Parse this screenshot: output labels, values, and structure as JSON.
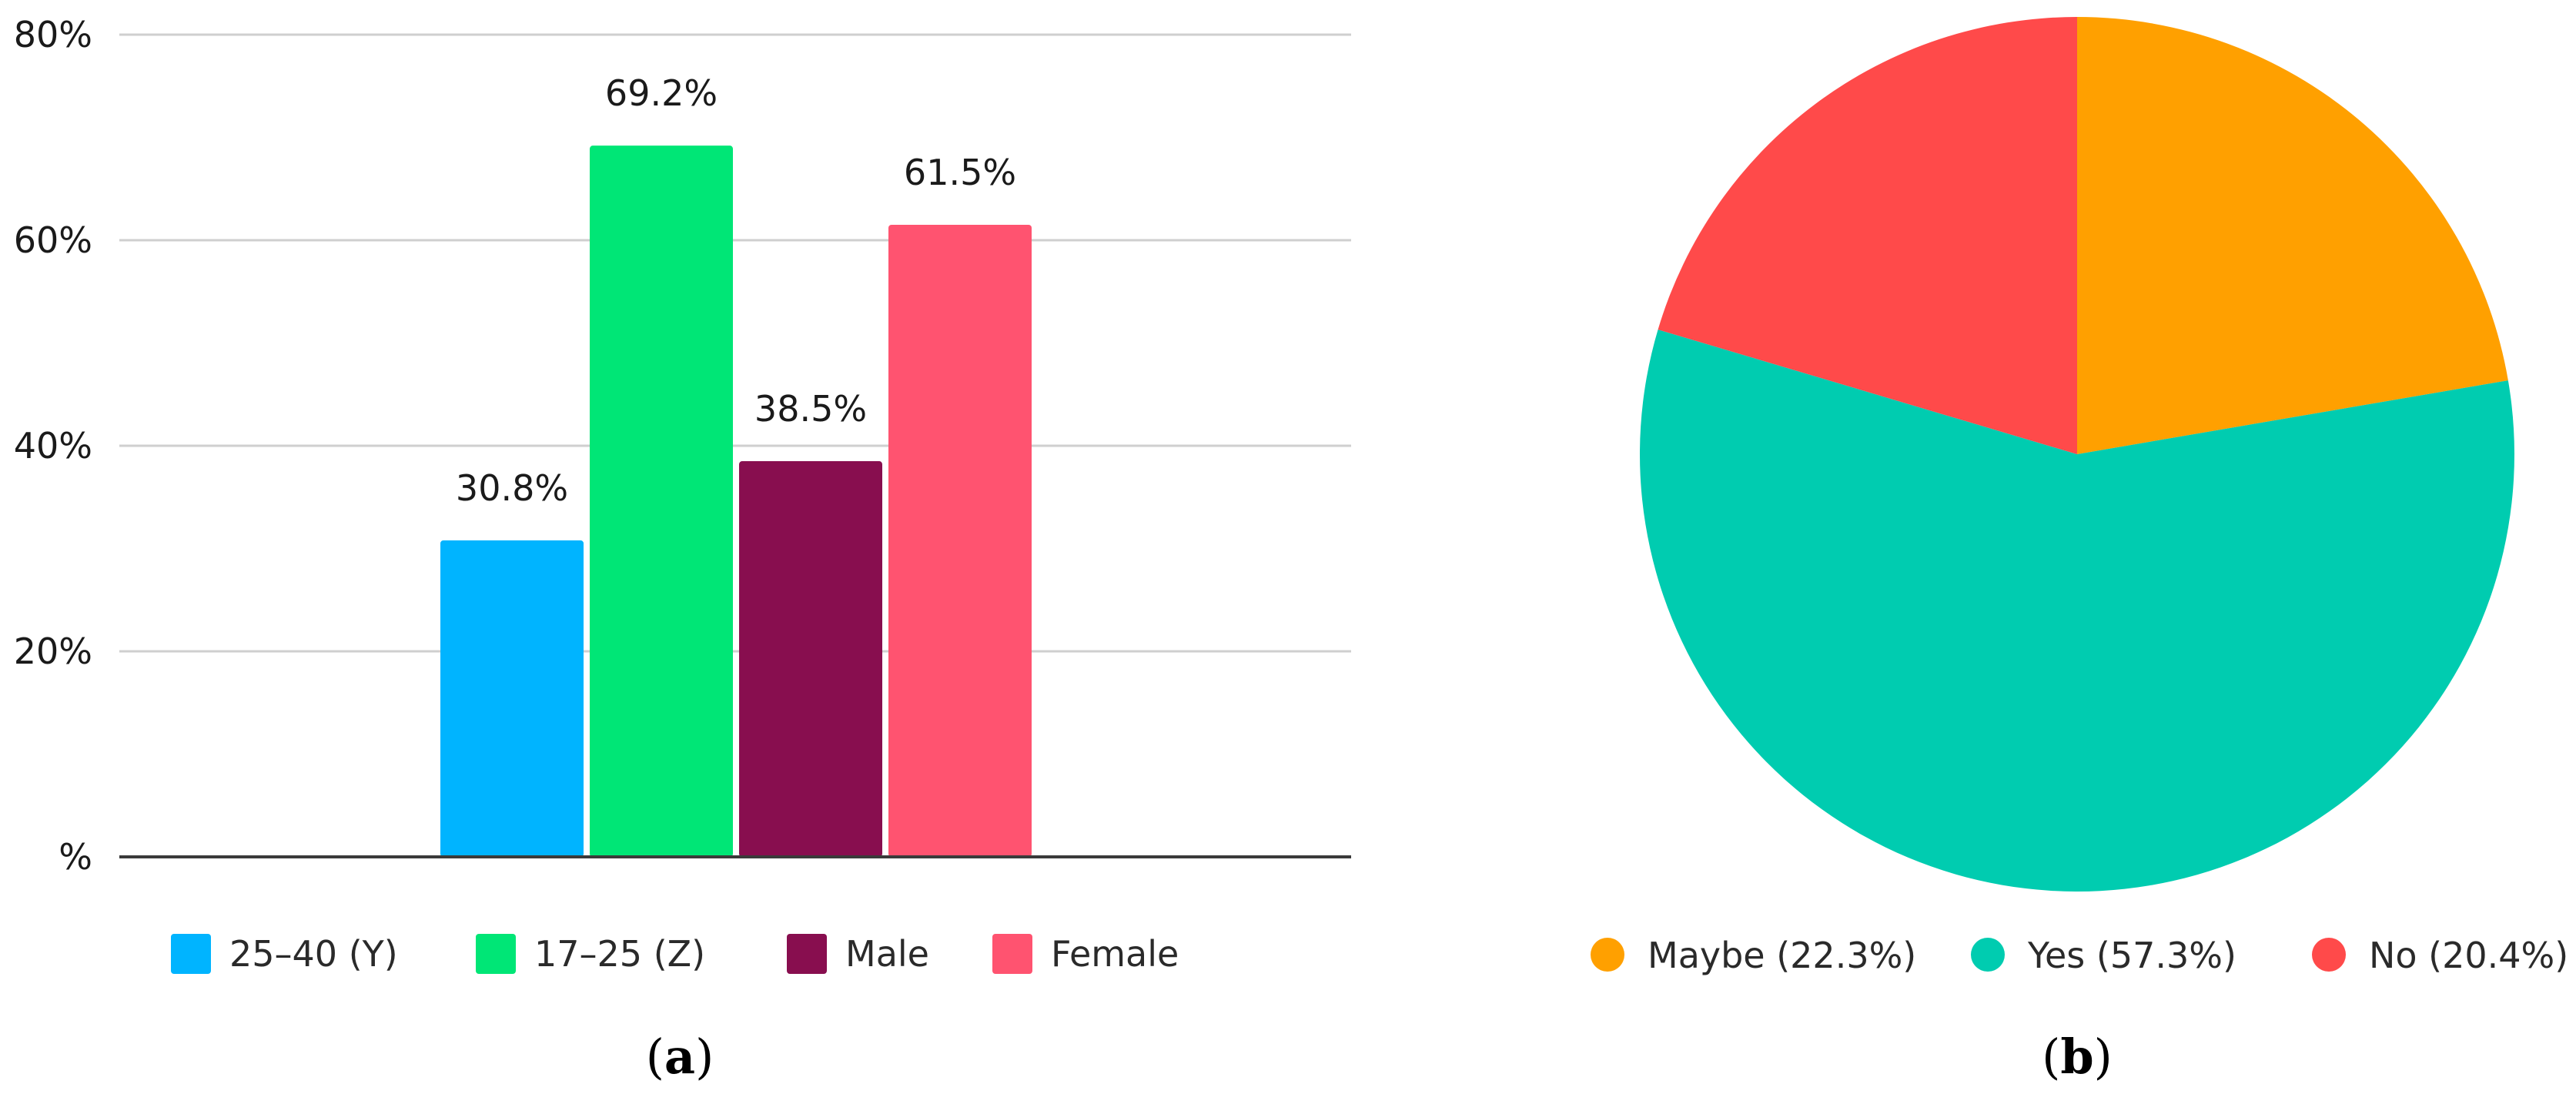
{
  "chart_data": [
    {
      "type": "bar",
      "categories": [
        "25–40 (Y)",
        "17–25 (Z)",
        "Male",
        "Female"
      ],
      "values": [
        30.8,
        69.2,
        38.5,
        61.5
      ],
      "data_labels": [
        "30.8%",
        "69.2%",
        "38.5%",
        "61.5%"
      ],
      "colors": [
        "#00b4ff",
        "#00e676",
        "#880e4f",
        "#ff5370"
      ],
      "ylim": [
        0,
        80
      ],
      "yticks": [
        0,
        20,
        40,
        60,
        80
      ],
      "ytick_labels": [
        "%",
        "20%",
        "40%",
        "60%",
        "80%"
      ],
      "grid": true,
      "legend": "bottom",
      "caption_letter": "a"
    },
    {
      "type": "pie",
      "labels": [
        "Maybe",
        "Yes",
        "No"
      ],
      "values": [
        22.3,
        57.3,
        20.4
      ],
      "legend_labels": [
        "Maybe (22.3%)",
        "Yes (57.3%)",
        "No (20.4%)"
      ],
      "colors": [
        "#ffa000",
        "#00ccb0",
        "#ff4a4a"
      ],
      "legend": "bottom",
      "caption_letter": "b"
    }
  ]
}
